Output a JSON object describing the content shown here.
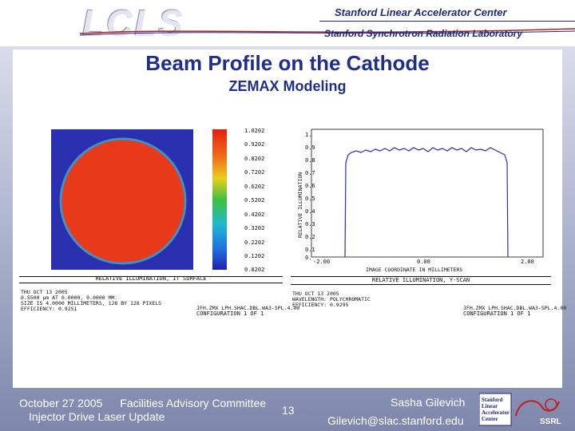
{
  "header": {
    "logo_text": "LCLS",
    "institution_1": "Stanford Linear Accelerator Center",
    "institution_2": "Stanford Synchrotron Radiation Laboratory"
  },
  "slide": {
    "title": "Beam Profile on the Cathode",
    "subtitle": "ZEMAX Modeling"
  },
  "left_plot": {
    "colorbar_ticks": [
      "1.0202",
      "0.9202",
      "0.8202",
      "0.7202",
      "0.6202",
      "0.5202",
      "0.4202",
      "0.3202",
      "0.2202",
      "0.1202",
      "0.0202"
    ],
    "caption": "RELATIVE ILLUMINATION, IT SURFACE",
    "info_lines": [
      "THU OCT 13 2005",
      "0.5500 µm AT 0.0000, 0.0000 MM.",
      "SIZE IS 4.0000 MILLIMETERS, 128 BY 128 PIXELS",
      "EFFICIENCY: 0.9251"
    ],
    "config": "CONFIGURATION 1 OF 1",
    "file": "JFH.ZMX LPH.SHAC.DBL.WA3-SPL.4.00"
  },
  "right_plot": {
    "ylabel": "RELATIVE ILLUMINATION",
    "xlabel": "IMAGE COORDINATE IN MILLIMETERS",
    "yticks": [
      "1.",
      "0.9",
      "0.8",
      "0.7",
      "0.6",
      "0.5",
      "0.4",
      "0.3",
      "0.2",
      "0.1",
      "0."
    ],
    "xticks": [
      "-2.00",
      "0.00",
      "2.00"
    ],
    "caption": "RELATIVE ILLUMINATION, Y-SCAN",
    "info_lines": [
      "THU OCT 13 2005",
      "WAVELENGTH: POLYCHROMATIC",
      "EFFICIENCY: 0.9295"
    ],
    "config": "CONFIGURATION 1 OF 1",
    "file": "JFH.ZMX LPH.SHAC.DBL.WA3-SPL.4.00"
  },
  "footer": {
    "date": "October 27 2005",
    "committee": "Facilities Advisory Committee",
    "topic": "Injector Drive Laser Update",
    "page": "13",
    "author": "Sasha Gilevich",
    "email": "Gilevich@slac.stanford.edu",
    "logo_text": "Stanford Linear Accelerator Center",
    "ssrl": "SSRL"
  },
  "colors": {
    "title": "#1f2e8c",
    "beam": "#e8391a",
    "beam_background": "#2a2fb0"
  }
}
